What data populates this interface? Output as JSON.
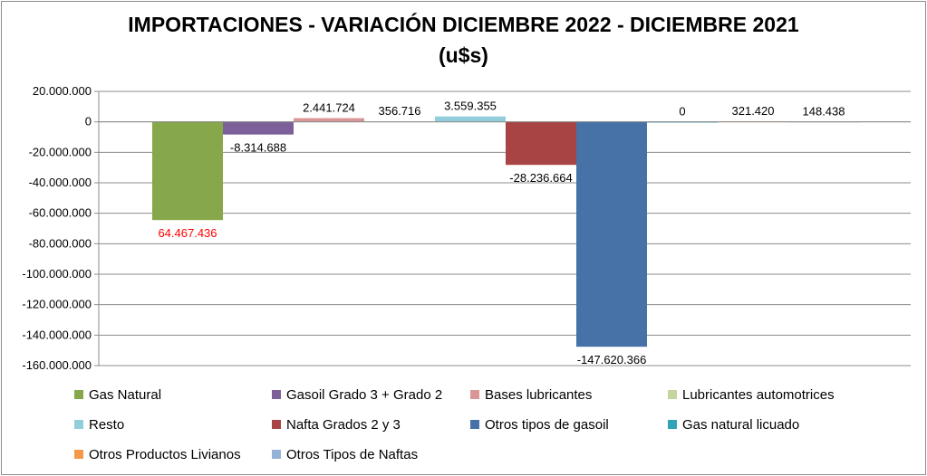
{
  "chart_data": {
    "type": "bar",
    "title": "IMPORTACIONES - VARIACIÓN DICIEMBRE 2022 - DICIEMBRE 2021",
    "subtitle": "(u$s)",
    "xlabel": "",
    "ylabel": "",
    "ylim": [
      -160000000,
      20000000
    ],
    "grid": true,
    "legend_position": "bottom",
    "y_ticks": [
      {
        "value": 20000000,
        "label": "20.000.000"
      },
      {
        "value": 0,
        "label": "0"
      },
      {
        "value": -20000000,
        "label": "-20.000.000"
      },
      {
        "value": -40000000,
        "label": "-40.000.000"
      },
      {
        "value": -60000000,
        "label": "-60.000.000"
      },
      {
        "value": -80000000,
        "label": "-80.000.000"
      },
      {
        "value": -100000000,
        "label": "-100.000.000"
      },
      {
        "value": -120000000,
        "label": "-120.000.000"
      },
      {
        "value": -140000000,
        "label": "-140.000.000"
      },
      {
        "value": -160000000,
        "label": "-160.000.000"
      }
    ],
    "series": [
      {
        "name": "Gas Natural",
        "value": -64467436,
        "label": "64.467.436",
        "color": "#86a84a",
        "label_color": "#ff0000"
      },
      {
        "name": "Gasoil Grado 3 + Grado 2",
        "value": -8314688,
        "label": "-8.314.688",
        "color": "#7d5f9a",
        "label_color": "#000000"
      },
      {
        "name": "Bases lubricantes",
        "value": 2441724,
        "label": "2.441.724",
        "color": "#d99694",
        "label_color": "#000000"
      },
      {
        "name": "Lubricantes automotrices",
        "value": 356716,
        "label": "356.716",
        "color": "#c3d69b",
        "label_color": "#000000"
      },
      {
        "name": "Resto",
        "value": 3559355,
        "label": "3.559.355",
        "color": "#92cddc",
        "label_color": "#000000"
      },
      {
        "name": "Nafta Grados 2 y 3",
        "value": -28236664,
        "label": "-28.236.664",
        "color": "#a84444",
        "label_color": "#000000"
      },
      {
        "name": "Otros tipos de gasoil",
        "value": -147620366,
        "label": "-147.620.366",
        "color": "#4672a8",
        "label_color": "#000000"
      },
      {
        "name": "Gas natural licuado",
        "value": 0,
        "label": "0",
        "color": "#31a3b8",
        "label_color": "#000000"
      },
      {
        "name": "Otros Productos Livianos",
        "value": 321420,
        "label": "321.420",
        "color": "#f39a4a",
        "label_color": "#000000"
      },
      {
        "name": "Otros Tipos de Naftas",
        "value": 148438,
        "label": "148.438",
        "color": "#95b3d7",
        "label_color": "#000000"
      }
    ]
  }
}
